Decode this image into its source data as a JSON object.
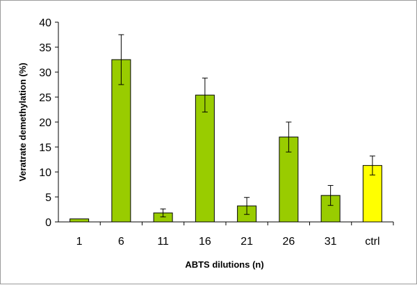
{
  "chart_data": {
    "type": "bar",
    "title": "",
    "xlabel": "ABTS dilutions (n)",
    "ylabel": "Veratrate demethylation (%)",
    "ylim": [
      0,
      40
    ],
    "yticks": [
      0,
      5,
      10,
      15,
      20,
      25,
      30,
      35,
      40
    ],
    "grid": false,
    "legend": "none",
    "categories": [
      "1",
      "6",
      "11",
      "16",
      "21",
      "26",
      "31",
      "ctrl"
    ],
    "values": [
      0.6,
      32.5,
      1.8,
      25.4,
      3.2,
      17.0,
      5.3,
      11.3
    ],
    "error": [
      0.0,
      5.0,
      0.8,
      3.4,
      1.7,
      3.0,
      2.0,
      1.9
    ],
    "colors": [
      "#99cc00",
      "#99cc00",
      "#99cc00",
      "#99cc00",
      "#99cc00",
      "#99cc00",
      "#99cc00",
      "#ffff00"
    ],
    "bar_stroke": "#000000"
  }
}
